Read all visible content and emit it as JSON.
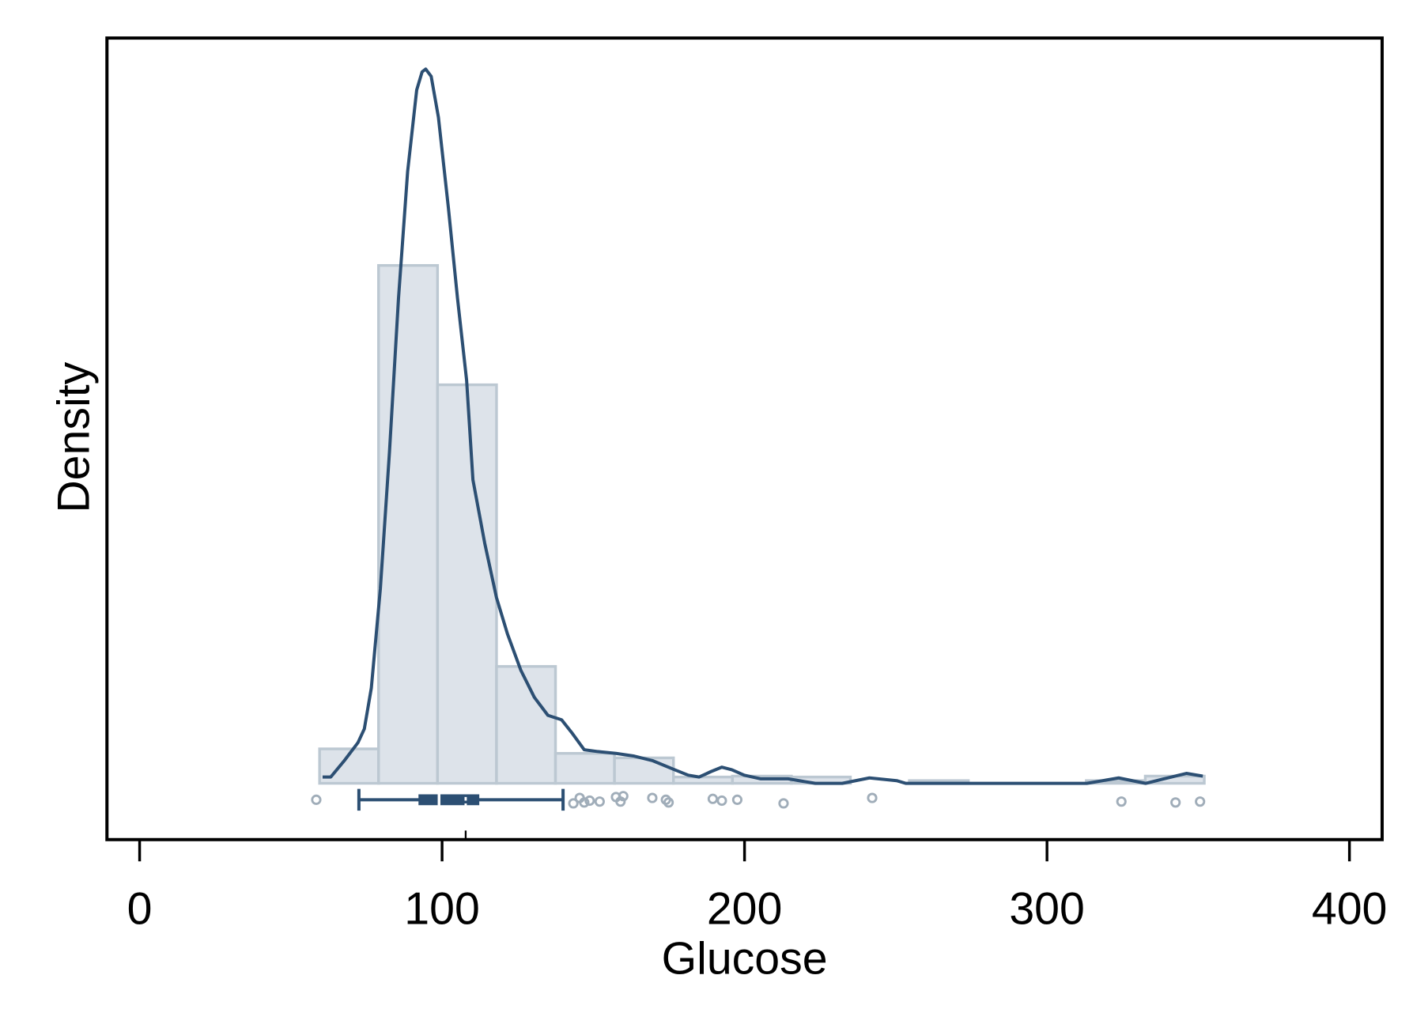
{
  "chart_data": {
    "type": "histogram",
    "xlabel": "Glucose",
    "ylabel": "Density",
    "bins": [
      59.5,
      79,
      98.5,
      118,
      137.5,
      157,
      176.5,
      196,
      215.5,
      235,
      254.5,
      274,
      293.5,
      313,
      332.5,
      352
    ],
    "values": [
      0.00153,
      0.023,
      0.0177,
      0.00519,
      0.00133,
      0.00113,
      0.00028,
      0.00032,
      0.00028,
      0,
      0.00012,
      0,
      0,
      0.00012,
      0.00032
    ],
    "color": "#dde3ea",
    "edge_color": "#bcc8d2",
    "density": {
      "color": "#2c4f73",
      "x": [
        60.5,
        63.2,
        67.7,
        72.2,
        74.3,
        76.6,
        79.6,
        82.6,
        85.6,
        88.6,
        91.6,
        93.4,
        94.6,
        96.4,
        98.8,
        102.1,
        105.1,
        108.1,
        110.2,
        114.1,
        118.0,
        121.6,
        126.0,
        130.5,
        135.0,
        139.5,
        143.1,
        147.0,
        151.5,
        157.5,
        163.5,
        169.5,
        176.9,
        181.4,
        185.0,
        188.9,
        192.5,
        195.8,
        199.9,
        205.4,
        214.4,
        223.4,
        232.3,
        241.3,
        250.3,
        253.3,
        313.2,
        323.7,
        332.6,
        338.6,
        346.1,
        351.5
      ],
      "y": [
        0.00028,
        0.00028,
        0.00101,
        0.00181,
        0.00242,
        0.00423,
        0.00865,
        0.01469,
        0.02153,
        0.02717,
        0.03079,
        0.0316,
        0.03172,
        0.0314,
        0.02958,
        0.02556,
        0.02153,
        0.01791,
        0.01348,
        0.01067,
        0.00825,
        0.00664,
        0.00503,
        0.00382,
        0.00302,
        0.00282,
        0.00221,
        0.00149,
        0.00141,
        0.00133,
        0.00121,
        0.00101,
        0.0006,
        0.00036,
        0.00028,
        0.00052,
        0.00072,
        0.0006,
        0.00036,
        0.0002,
        0.0002,
        0,
        0,
        0.00024,
        0.00012,
        0,
        0,
        0.00024,
        0,
        0.0002,
        0.00044,
        0.00032
      ]
    },
    "boxplot": {
      "min": 72.5,
      "q1": 92.5,
      "median": 99,
      "q3": 112,
      "max": 140,
      "mean": 107.8,
      "color": "#2c4f73"
    },
    "points": [
      58.4,
      143.4,
      145.5,
      147,
      148.8,
      152.1,
      157.5,
      159,
      159.9,
      169.5,
      174,
      174.9,
      189.5,
      192.5,
      197.6,
      212.9,
      242.2,
      324.6,
      342.5,
      350.6
    ],
    "point_color": "#a0adb9",
    "xlim": [
      -10.8,
      410.8
    ],
    "xticks": [
      0,
      100,
      200,
      300,
      400
    ],
    "ylim": [
      -0.0025,
      0.0331
    ]
  }
}
